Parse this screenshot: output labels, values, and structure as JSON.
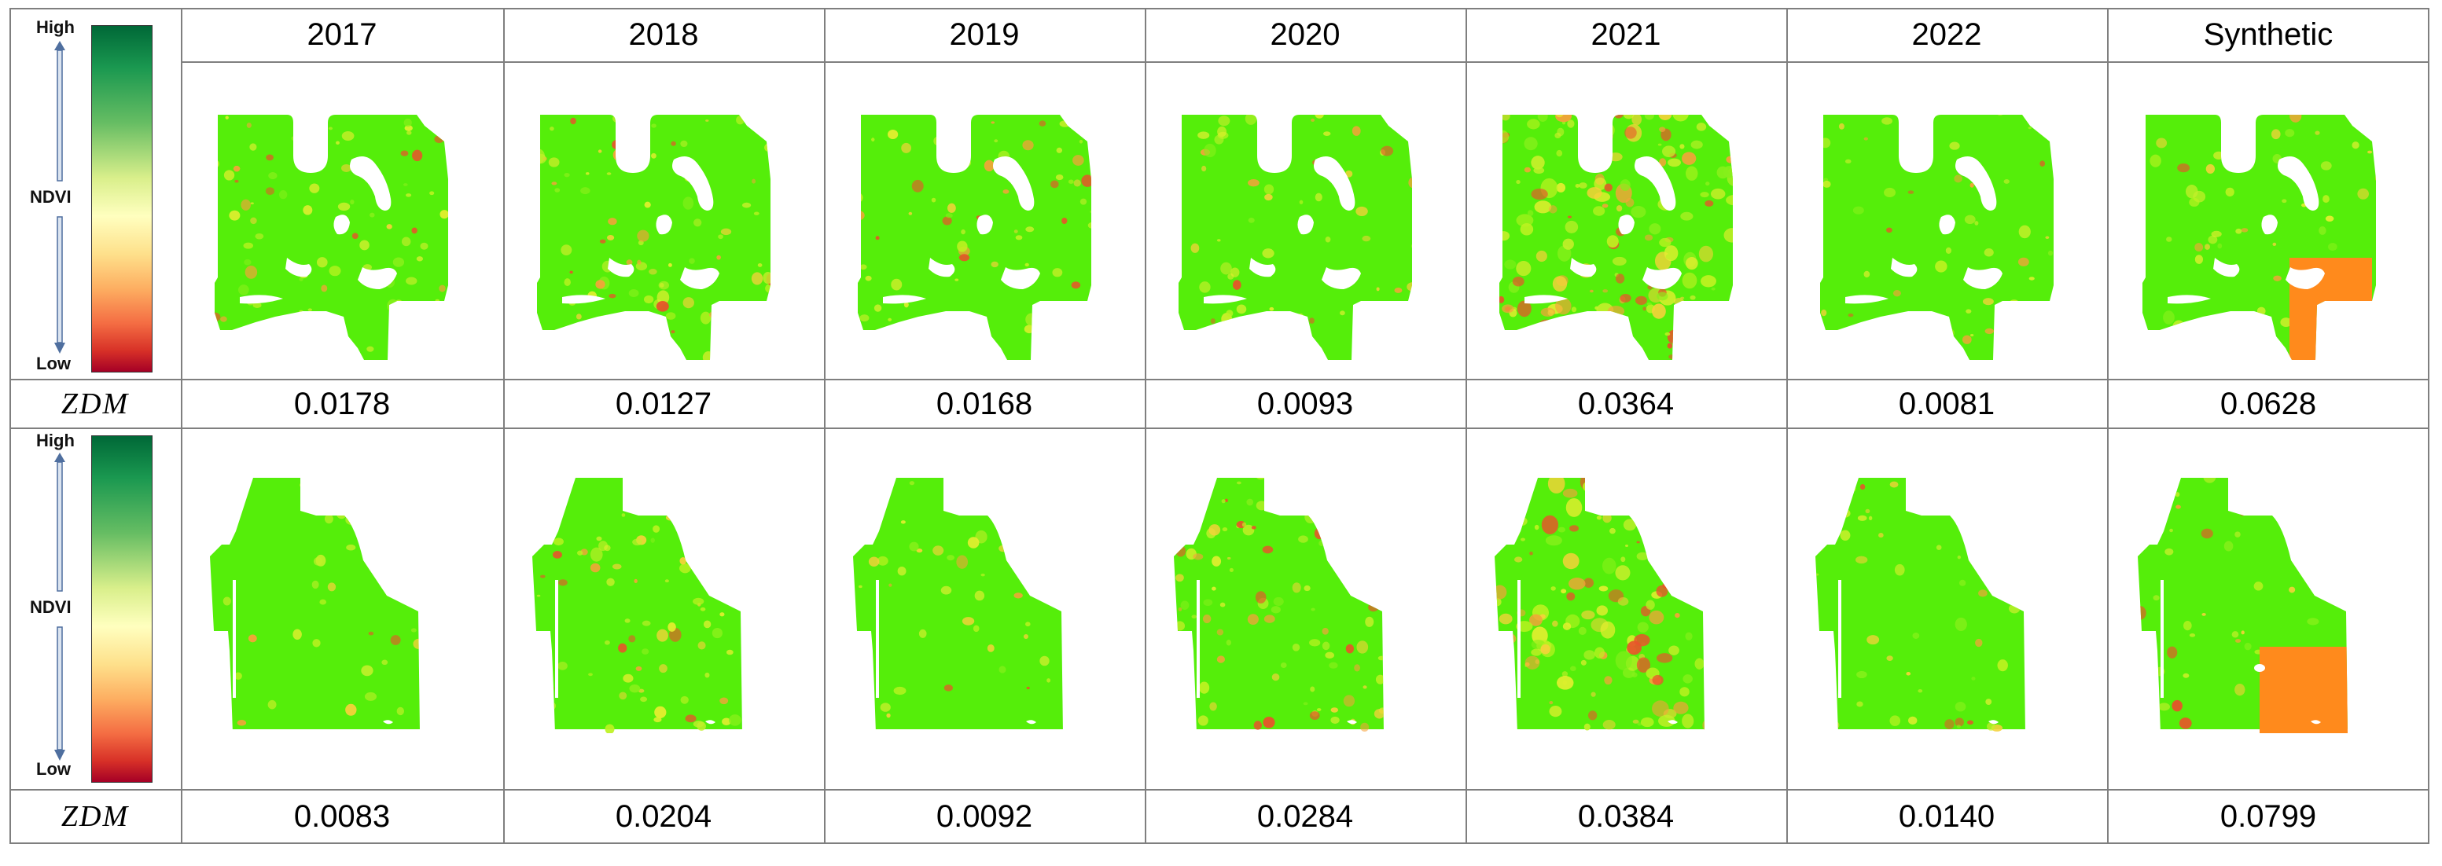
{
  "columns": [
    "2017",
    "2018",
    "2019",
    "2020",
    "2021",
    "2022",
    "Synthetic"
  ],
  "legend": {
    "high": "High",
    "mid": "NDVI",
    "low": "Low"
  },
  "metric_label": "ZDM",
  "rows": [
    {
      "field": "field-1",
      "zdm": [
        "0.0178",
        "0.0127",
        "0.0168",
        "0.0093",
        "0.0364",
        "0.0081",
        "0.0628"
      ]
    },
    {
      "field": "field-2",
      "zdm": [
        "0.0083",
        "0.0204",
        "0.0092",
        "0.0284",
        "0.0384",
        "0.0140",
        "0.0799"
      ]
    }
  ],
  "colors": {
    "ndvi_high": "#006837",
    "ndvi_mid": "#ffffbf",
    "ndvi_low": "#a50026",
    "field_base": "#55ee0a",
    "synthetic_patch": "#ff8a1c",
    "grid": "#7f7f7f"
  },
  "speckle_intensity": {
    "row1": [
      0.25,
      0.3,
      0.2,
      0.12,
      0.6,
      0.08,
      0.15
    ],
    "row2": [
      0.08,
      0.3,
      0.08,
      0.35,
      0.55,
      0.1,
      0.12
    ]
  }
}
